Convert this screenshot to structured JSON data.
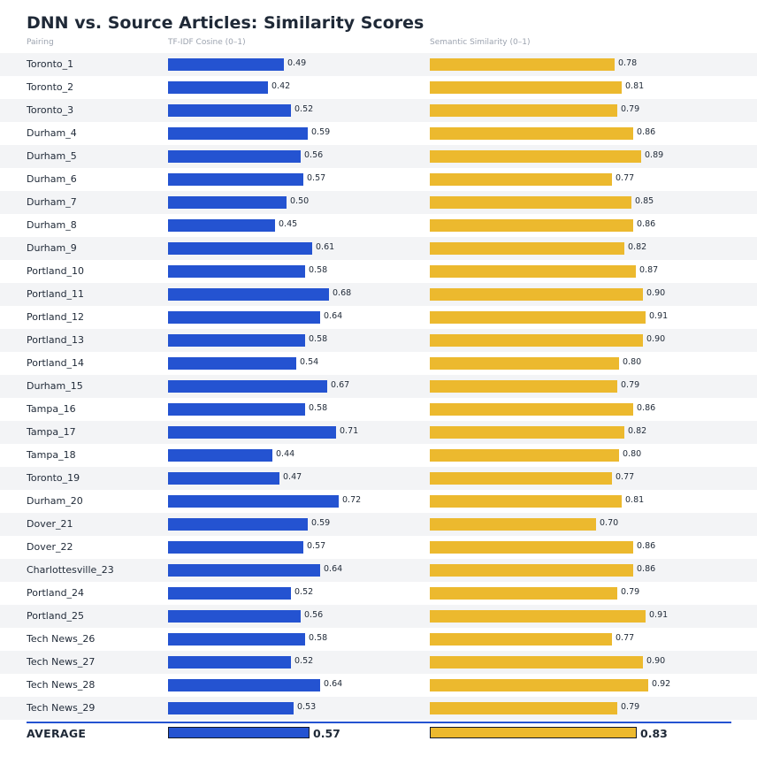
{
  "chart_data": {
    "type": "bar",
    "title": "DNN vs. Source Articles: Similarity Scores",
    "column_headers": {
      "pairing": "Pairing",
      "tfidf": "TF-IDF Cosine (0–1)",
      "semantic": "Semantic Similarity (0–1)"
    },
    "xlim": [
      0,
      1
    ],
    "categories": [
      "Toronto_1",
      "Toronto_2",
      "Toronto_3",
      "Durham_4",
      "Durham_5",
      "Durham_6",
      "Durham_7",
      "Durham_8",
      "Durham_9",
      "Portland_10",
      "Portland_11",
      "Portland_12",
      "Portland_13",
      "Portland_14",
      "Durham_15",
      "Tampa_16",
      "Tampa_17",
      "Tampa_18",
      "Toronto_19",
      "Durham_20",
      "Dover_21",
      "Dover_22",
      "Charlottesville_23",
      "Portland_24",
      "Portland_25",
      "Tech News_26",
      "Tech News_27",
      "Tech News_28",
      "Tech News_29"
    ],
    "series": [
      {
        "name": "TF-IDF Cosine (0–1)",
        "color": "#2453d1",
        "values": [
          0.49,
          0.42,
          0.52,
          0.59,
          0.56,
          0.57,
          0.5,
          0.45,
          0.61,
          0.58,
          0.68,
          0.64,
          0.58,
          0.54,
          0.67,
          0.58,
          0.71,
          0.44,
          0.47,
          0.72,
          0.59,
          0.57,
          0.64,
          0.52,
          0.56,
          0.58,
          0.52,
          0.64,
          0.53
        ]
      },
      {
        "name": "Semantic Similarity (0–1)",
        "color": "#ecb92e",
        "values": [
          0.78,
          0.81,
          0.79,
          0.86,
          0.89,
          0.77,
          0.85,
          0.86,
          0.82,
          0.87,
          0.9,
          0.91,
          0.9,
          0.8,
          0.79,
          0.86,
          0.82,
          0.8,
          0.77,
          0.81,
          0.7,
          0.86,
          0.86,
          0.79,
          0.91,
          0.77,
          0.9,
          0.92,
          0.79
        ]
      }
    ],
    "average": {
      "label": "AVERAGE",
      "tfidf": 0.57,
      "semantic": 0.83
    }
  }
}
